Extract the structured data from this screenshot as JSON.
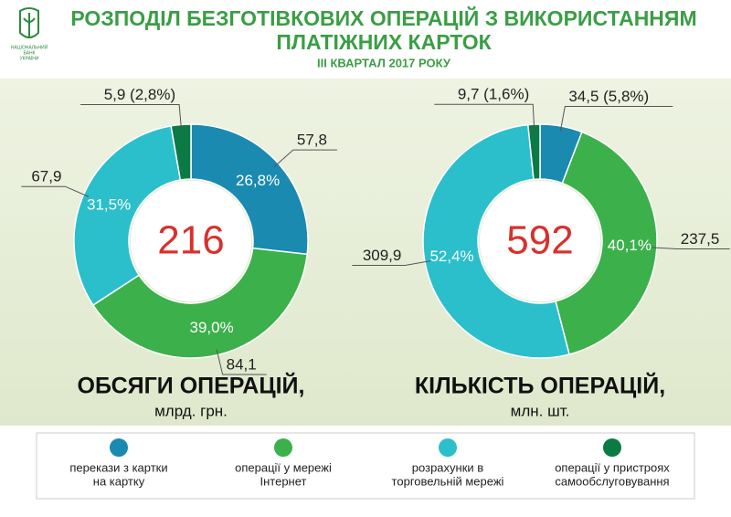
{
  "header": {
    "title_lines": [
      "РОЗПОДІЛ БЕЗГОТІВКОВИХ ОПЕРАЦІЙ З ВИКОРИСТАННЯМ",
      "ПЛАТІЖНИХ КАРТОК"
    ],
    "subtitle": "III КВАРТАЛ 2017 РОКУ",
    "logo_text": [
      "НАЦІОНАЛЬНИЙ",
      "БАНК",
      "УКРАЇНИ"
    ]
  },
  "legend": {
    "items": [
      {
        "label": [
          "перекази з картки",
          "на картку"
        ],
        "color": "#1a8ab0"
      },
      {
        "label": [
          "операції у мережі",
          "Інтернет"
        ],
        "color": "#3cb04b"
      },
      {
        "label": [
          "розрахунки в",
          "торговельній мережі"
        ],
        "color": "#2bbfcb"
      },
      {
        "label": [
          "операції у пристроях",
          "самообслуговування"
        ],
        "color": "#0b7a44"
      }
    ]
  },
  "chart_data": [
    {
      "type": "pie",
      "title": "ОБСЯГИ ОПЕРАЦІЙ,",
      "unit": "млрд. грн.",
      "total": 216,
      "values": [
        57.8,
        84.1,
        67.9,
        5.9
      ],
      "value_labels": [
        "57,8",
        "84,1",
        "67,9",
        "5,9 (2,8%)"
      ],
      "percent_labels": [
        "26,8%",
        "39,0%",
        "31,5%",
        null
      ]
    },
    {
      "type": "pie",
      "title": "КІЛЬКІСТЬ ОПЕРАЦІЙ,",
      "unit": "млн. шт.",
      "total": 592,
      "values": [
        34.5,
        237.5,
        309.9,
        9.7
      ],
      "value_labels": [
        "34,5 (5,8%)",
        "237,5",
        "309,9",
        "9,7 (1,6%)"
      ],
      "percent_labels": [
        null,
        "40,1%",
        "52,4%",
        null
      ]
    }
  ]
}
